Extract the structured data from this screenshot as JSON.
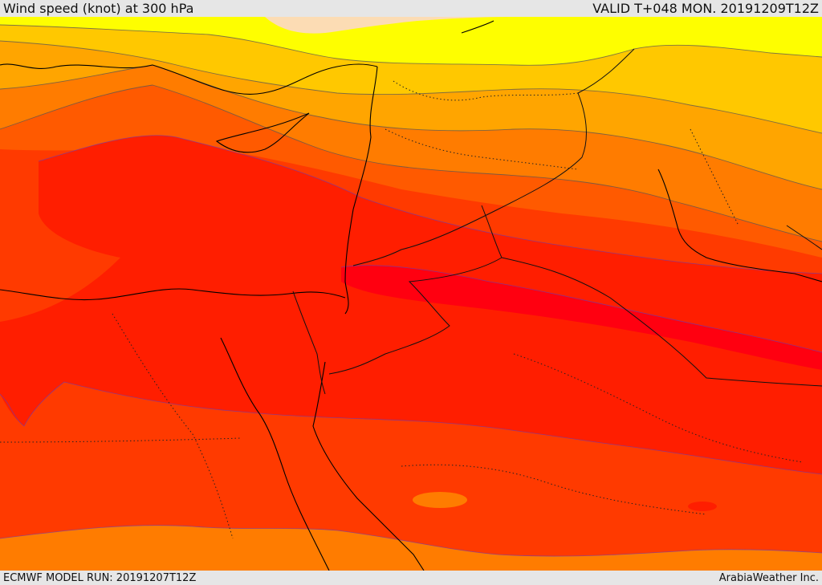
{
  "header": {
    "title": "Wind speed (knot) at 300 hPa",
    "valid": "VALID T+048 MON. 20191209T12Z"
  },
  "footer": {
    "model_run": "ECMWF MODEL RUN: 20191207T12Z",
    "credit": "ArabiaWeather Inc."
  },
  "colors": {
    "peach": "#fcdcb4",
    "yellow": "#fefe00",
    "light_orange": "#ffc800",
    "orange": "#ffa500",
    "dark_orange": "#ff7c00",
    "red_orange": "#ff5a00",
    "orange_red": "#ff3a00",
    "red": "#ff1e00",
    "deep_red": "#ff0010"
  }
}
